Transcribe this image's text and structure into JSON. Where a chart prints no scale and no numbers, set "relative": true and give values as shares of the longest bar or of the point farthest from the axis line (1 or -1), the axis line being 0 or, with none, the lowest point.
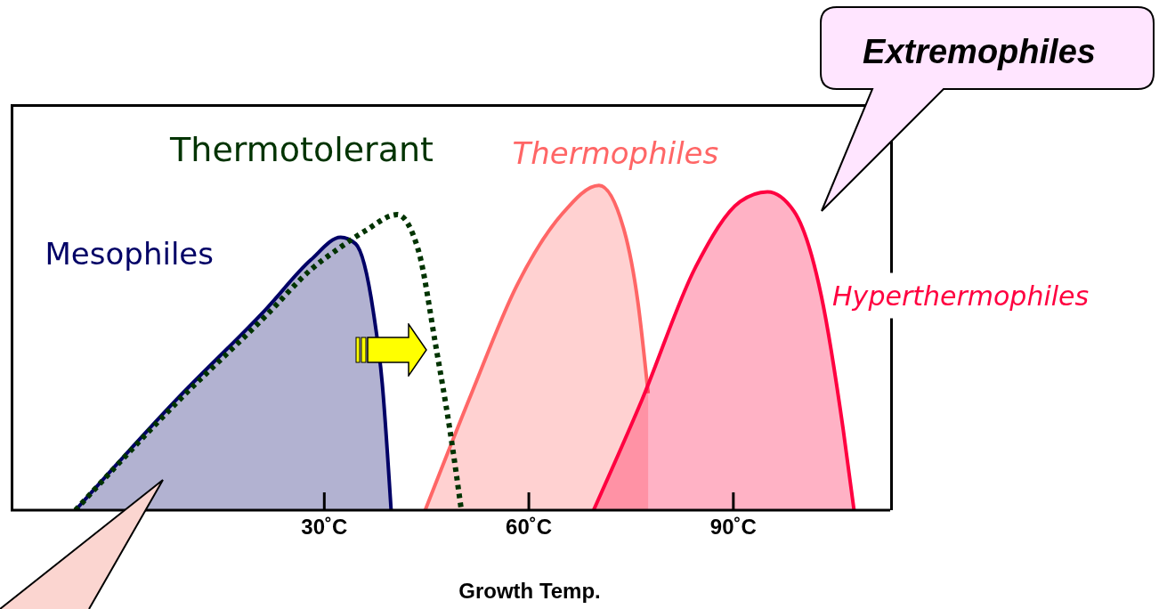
{
  "chart_data": {
    "type": "area",
    "relative": true,
    "xlabel": "Growth Temp.",
    "xlim": [
      -16,
      113
    ],
    "xticks": [
      {
        "value": 30,
        "label": "30˚C"
      },
      {
        "value": 60,
        "label": "60˚C"
      },
      {
        "value": 90,
        "label": "90˚C"
      }
    ],
    "annotations": [
      "Extremophiles"
    ],
    "grid": false,
    "legend": false,
    "series": [
      {
        "name": "Mesophiles",
        "color": "#000066",
        "x": [
          -6.5,
          8.3,
          21.5,
          28,
          32.4,
          34.6,
          37.2,
          38.5,
          39.8
        ],
        "values": [
          0,
          0.34,
          0.62,
          0.77,
          0.84,
          0.82,
          0.61,
          0.39,
          0
        ]
      },
      {
        "name": "Thermotolerant",
        "type": "line",
        "line_style": "dotted",
        "color": "#003300",
        "x": [
          -6.5,
          8.3,
          21.5,
          28,
          32.4,
          36,
          40.7,
          43.8,
          46.4,
          48.4,
          50.1
        ],
        "values": [
          0,
          0.33,
          0.6,
          0.74,
          0.81,
          0.86,
          0.91,
          0.8,
          0.5,
          0.25,
          0
        ]
      },
      {
        "name": "Thermophiles",
        "color": "#ff6666",
        "x": [
          44.8,
          51.6,
          58.2,
          64.8,
          70.3,
          74,
          76,
          77.5
        ],
        "values": [
          0,
          0.36,
          0.69,
          0.91,
          1,
          0.86,
          0.64,
          0.36
        ]
      },
      {
        "name": "Hyperthermophiles",
        "color": "#ff0040",
        "x": [
          69.5,
          76.6,
          84.5,
          91,
          95,
          98.9,
          102.9,
          106.1,
          107.7
        ],
        "values": [
          0,
          0.34,
          0.75,
          0.95,
          0.98,
          0.92,
          0.66,
          0.25,
          0
        ]
      }
    ]
  }
}
